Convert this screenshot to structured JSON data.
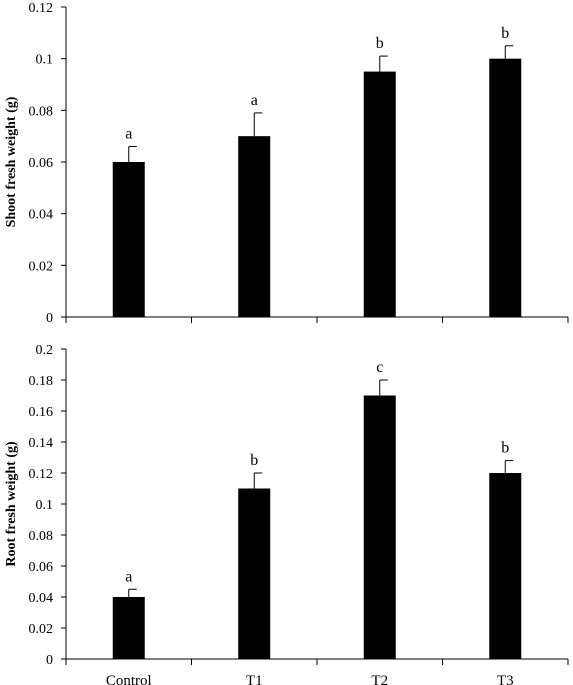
{
  "chart_data": [
    {
      "type": "bar",
      "categories": [
        "Control",
        "T1",
        "T2",
        "T3"
      ],
      "values": [
        0.06,
        0.07,
        0.095,
        0.1
      ],
      "errors": [
        0.006,
        0.009,
        0.006,
        0.005
      ],
      "significance": [
        "a",
        "a",
        "b",
        "b"
      ],
      "ylabel": "Shoot fresh weight (g)",
      "xlabel": "",
      "ylim": [
        0,
        0.12
      ],
      "yticks": [
        "0",
        "0.02",
        "0.04",
        "0.06",
        "0.08",
        "0.1",
        "0.12"
      ],
      "bar_color": "#000000",
      "show_category_labels": false,
      "grid": false
    },
    {
      "type": "bar",
      "categories": [
        "Control",
        "T1",
        "T2",
        "T3"
      ],
      "values": [
        0.04,
        0.11,
        0.17,
        0.12
      ],
      "errors": [
        0.005,
        0.01,
        0.01,
        0.008
      ],
      "significance": [
        "a",
        "b",
        "c",
        "b"
      ],
      "ylabel": "Root fresh weight (g)",
      "xlabel": "",
      "ylim": [
        0,
        0.2
      ],
      "yticks": [
        "0",
        "0.02",
        "0.04",
        "0.06",
        "0.08",
        "0.1",
        "0.12",
        "0.14",
        "0.16",
        "0.18",
        "0.2"
      ],
      "bar_color": "#000000",
      "show_category_labels": true,
      "grid": false
    }
  ]
}
